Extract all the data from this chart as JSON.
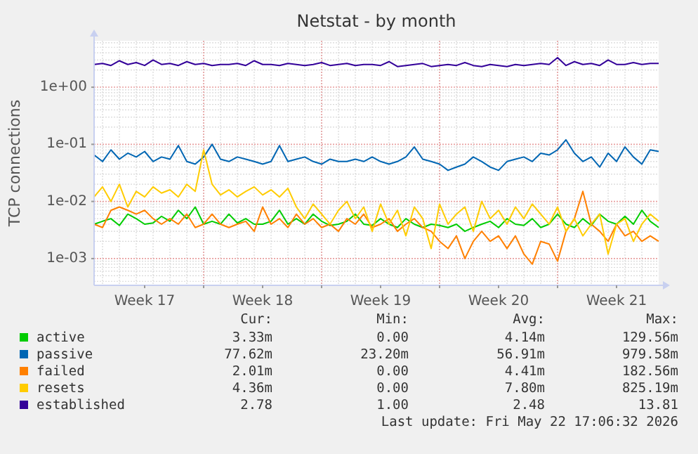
{
  "chart_data": {
    "type": "line",
    "title": "Netstat - by month",
    "ylabel": "TCP connections",
    "log": "y",
    "grid": true,
    "legend": "bottom",
    "marker": "none",
    "line_style": "solid",
    "xlim": [
      "2026-04-19T05:00",
      "2026-05-22T17:00"
    ],
    "xticks": [
      {
        "value": "2026-04-22T05:00",
        "label": "Week 17"
      },
      {
        "value": "2026-04-25T17:00",
        "label": null
      },
      {
        "value": "2026-04-29T05:00",
        "label": "Week 18"
      },
      {
        "value": "2026-05-02T17:00",
        "label": null
      },
      {
        "value": "2026-05-06T05:00",
        "label": "Week 19"
      },
      {
        "value": "2026-05-09T17:00",
        "label": null
      },
      {
        "value": "2026-05-13T05:00",
        "label": "Week 20"
      },
      {
        "value": "2026-05-16T17:00",
        "label": null
      },
      {
        "value": "2026-05-20T05:00",
        "label": "Week 21"
      }
    ],
    "ylim": [
      0.00034,
      6.5
    ],
    "yticks": [
      {
        "value": 0.001,
        "label": "1e-03"
      },
      {
        "value": 0.01,
        "label": "1e-02"
      },
      {
        "value": 0.1,
        "label": "1e-01"
      },
      {
        "value": 1,
        "label": "1e+00"
      }
    ],
    "x": [
      "2026-04-19T05:00",
      "2026-04-19T17:00",
      "2026-04-20T05:00",
      "2026-04-20T17:00",
      "2026-04-21T05:00",
      "2026-04-21T17:00",
      "2026-04-22T05:00",
      "2026-04-22T17:00",
      "2026-04-23T05:00",
      "2026-04-23T17:00",
      "2026-04-24T05:00",
      "2026-04-24T17:00",
      "2026-04-25T05:00",
      "2026-04-25T17:00",
      "2026-04-26T05:00",
      "2026-04-26T17:00",
      "2026-04-27T05:00",
      "2026-04-27T17:00",
      "2026-04-28T05:00",
      "2026-04-28T17:00",
      "2026-04-29T05:00",
      "2026-04-29T17:00",
      "2026-04-30T05:00",
      "2026-04-30T17:00",
      "2026-05-01T05:00",
      "2026-05-01T17:00",
      "2026-05-02T05:00",
      "2026-05-02T17:00",
      "2026-05-03T05:00",
      "2026-05-03T17:00",
      "2026-05-04T05:00",
      "2026-05-04T17:00",
      "2026-05-05T05:00",
      "2026-05-05T17:00",
      "2026-05-06T05:00",
      "2026-05-06T17:00",
      "2026-05-07T05:00",
      "2026-05-07T17:00",
      "2026-05-08T05:00",
      "2026-05-08T17:00",
      "2026-05-09T05:00",
      "2026-05-09T17:00",
      "2026-05-10T05:00",
      "2026-05-10T17:00",
      "2026-05-11T05:00",
      "2026-05-11T17:00",
      "2026-05-12T05:00",
      "2026-05-12T17:00",
      "2026-05-13T05:00",
      "2026-05-13T17:00",
      "2026-05-14T05:00",
      "2026-05-14T17:00",
      "2026-05-15T05:00",
      "2026-05-15T17:00",
      "2026-05-16T05:00",
      "2026-05-16T17:00",
      "2026-05-17T05:00",
      "2026-05-17T17:00",
      "2026-05-18T05:00",
      "2026-05-18T17:00",
      "2026-05-19T05:00",
      "2026-05-19T17:00",
      "2026-05-20T05:00",
      "2026-05-20T17:00",
      "2026-05-21T05:00",
      "2026-05-21T17:00",
      "2026-05-22T05:00",
      "2026-05-22T17:00"
    ],
    "series": [
      {
        "name": "active",
        "color": "#00cc00",
        "values": [
          0.004,
          0.0045,
          0.005,
          0.0038,
          0.006,
          0.005,
          0.004,
          0.0042,
          0.0055,
          0.0045,
          0.007,
          0.005,
          0.008,
          0.004,
          0.0045,
          0.004,
          0.006,
          0.0042,
          0.005,
          0.004,
          0.004,
          0.0045,
          0.007,
          0.004,
          0.005,
          0.004,
          0.006,
          0.0045,
          0.0038,
          0.004,
          0.0045,
          0.006,
          0.004,
          0.0038,
          0.005,
          0.004,
          0.0035,
          0.005,
          0.004,
          0.0035,
          0.004,
          0.0038,
          0.0035,
          0.004,
          0.003,
          0.0035,
          0.004,
          0.0045,
          0.0035,
          0.005,
          0.004,
          0.0038,
          0.005,
          0.0035,
          0.004,
          0.006,
          0.004,
          0.0035,
          0.005,
          0.0038,
          0.006,
          0.0045,
          0.004,
          0.0055,
          0.004,
          0.007,
          0.0045,
          0.0035
        ]
      },
      {
        "name": "passive",
        "color": "#0066b3",
        "values": [
          0.065,
          0.05,
          0.08,
          0.055,
          0.07,
          0.06,
          0.075,
          0.05,
          0.06,
          0.055,
          0.095,
          0.05,
          0.045,
          0.06,
          0.1,
          0.055,
          0.05,
          0.06,
          0.055,
          0.05,
          0.045,
          0.05,
          0.095,
          0.05,
          0.055,
          0.06,
          0.05,
          0.045,
          0.055,
          0.05,
          0.05,
          0.055,
          0.05,
          0.06,
          0.05,
          0.045,
          0.05,
          0.06,
          0.09,
          0.055,
          0.05,
          0.045,
          0.035,
          0.04,
          0.045,
          0.06,
          0.05,
          0.04,
          0.035,
          0.05,
          0.055,
          0.06,
          0.05,
          0.07,
          0.065,
          0.08,
          0.12,
          0.07,
          0.05,
          0.06,
          0.04,
          0.07,
          0.05,
          0.09,
          0.06,
          0.045,
          0.08,
          0.075
        ]
      },
      {
        "name": "failed",
        "color": "#ff8000",
        "values": [
          0.004,
          0.0035,
          0.007,
          0.008,
          0.007,
          0.006,
          0.007,
          0.005,
          0.004,
          0.005,
          0.004,
          0.006,
          0.0035,
          0.004,
          0.006,
          0.004,
          0.0035,
          0.004,
          0.0045,
          0.003,
          0.008,
          0.004,
          0.005,
          0.0035,
          0.006,
          0.004,
          0.005,
          0.0035,
          0.004,
          0.003,
          0.005,
          0.004,
          0.006,
          0.0035,
          0.004,
          0.005,
          0.003,
          0.004,
          0.005,
          0.0035,
          0.003,
          0.002,
          0.0015,
          0.0025,
          0.001,
          0.002,
          0.003,
          0.002,
          0.0025,
          0.0015,
          0.0025,
          0.0012,
          0.0008,
          0.002,
          0.0018,
          0.0009,
          0.003,
          0.005,
          0.015,
          0.004,
          0.003,
          0.002,
          0.004,
          0.0025,
          0.003,
          0.002,
          0.0025,
          0.002
        ]
      },
      {
        "name": "resets",
        "color": "#ffcc00",
        "values": [
          0.012,
          0.018,
          0.01,
          0.02,
          0.008,
          0.015,
          0.012,
          0.018,
          0.014,
          0.016,
          0.012,
          0.02,
          0.015,
          0.08,
          0.02,
          0.013,
          0.016,
          0.012,
          0.015,
          0.018,
          0.013,
          0.016,
          0.012,
          0.017,
          0.008,
          0.005,
          0.009,
          0.006,
          0.004,
          0.007,
          0.01,
          0.005,
          0.008,
          0.003,
          0.009,
          0.004,
          0.007,
          0.0025,
          0.008,
          0.005,
          0.0015,
          0.009,
          0.004,
          0.006,
          0.008,
          0.003,
          0.01,
          0.005,
          0.007,
          0.004,
          0.008,
          0.005,
          0.009,
          0.006,
          0.004,
          0.008,
          0.003,
          0.005,
          0.0025,
          0.004,
          0.006,
          0.0012,
          0.004,
          0.005,
          0.002,
          0.004,
          0.006,
          0.0045
        ]
      },
      {
        "name": "established",
        "color": "#330099",
        "values": [
          2.5,
          2.6,
          2.4,
          2.9,
          2.5,
          2.7,
          2.4,
          3.0,
          2.5,
          2.6,
          2.4,
          2.8,
          2.5,
          2.6,
          2.4,
          2.5,
          2.5,
          2.6,
          2.4,
          2.9,
          2.5,
          2.5,
          2.4,
          2.6,
          2.5,
          2.4,
          2.5,
          2.7,
          2.4,
          2.5,
          2.6,
          2.4,
          2.5,
          2.5,
          2.4,
          2.8,
          2.3,
          2.4,
          2.5,
          2.6,
          2.3,
          2.4,
          2.5,
          2.4,
          2.7,
          2.4,
          2.3,
          2.5,
          2.4,
          2.3,
          2.5,
          2.4,
          2.5,
          2.6,
          2.5,
          3.3,
          2.4,
          2.8,
          2.5,
          2.6,
          2.4,
          3.0,
          2.5,
          2.5,
          2.7,
          2.5,
          2.6,
          2.6
        ]
      }
    ],
    "annotations": [
      "Cur:",
      "Min:",
      "Avg:",
      "Max:",
      "3.33m",
      "0.00",
      "4.14m",
      "129.56m",
      "77.62m",
      "23.20m",
      "56.91m",
      "979.58m",
      "2.01m",
      "0.00",
      "4.41m",
      "182.56m",
      "4.36m",
      "0.00",
      "7.80m",
      "825.19m",
      "2.78",
      "1.00",
      "2.48",
      "13.81",
      "Last update: Fri May 22 17:06:32 2026"
    ]
  }
}
